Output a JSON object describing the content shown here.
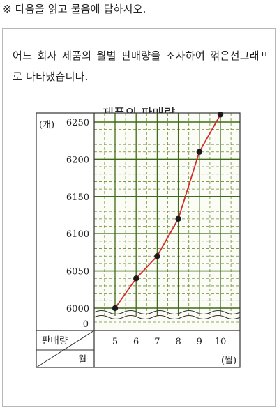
{
  "instruction": "※ 다음을 읽고 물음에 답하시오.",
  "question": "어느 회사 제품의 월별 판매량을 조사하여 꺾은선그래프로 나타냈습니다.",
  "chart_data": {
    "type": "line",
    "title": "제품의 판매량",
    "y_unit_label": "(개)",
    "x_unit_label": "(월)",
    "row_label_top": "판매량",
    "row_label_bottom": "월",
    "x": [
      5,
      6,
      7,
      8,
      9,
      10
    ],
    "x_tick_labels": [
      "5",
      "6",
      "7",
      "8",
      "9",
      "10"
    ],
    "values": [
      6000,
      6040,
      6070,
      6120,
      6210,
      6260
    ],
    "ylim": [
      6000,
      6250
    ],
    "y_ticks": [
      6000,
      6050,
      6100,
      6150,
      6200,
      6250
    ],
    "y_tick_labels": [
      "6000",
      "6050",
      "6100",
      "6150",
      "6200",
      "6250"
    ],
    "y_zero_label": "0",
    "broken_axis": true,
    "grid": true,
    "line_color": "#d42a2a",
    "point_color": "#1a1a1a",
    "grid_major_color": "#3f6a17",
    "grid_minor_color": "#6d8a36",
    "plot_background": "#fbfcf5"
  }
}
